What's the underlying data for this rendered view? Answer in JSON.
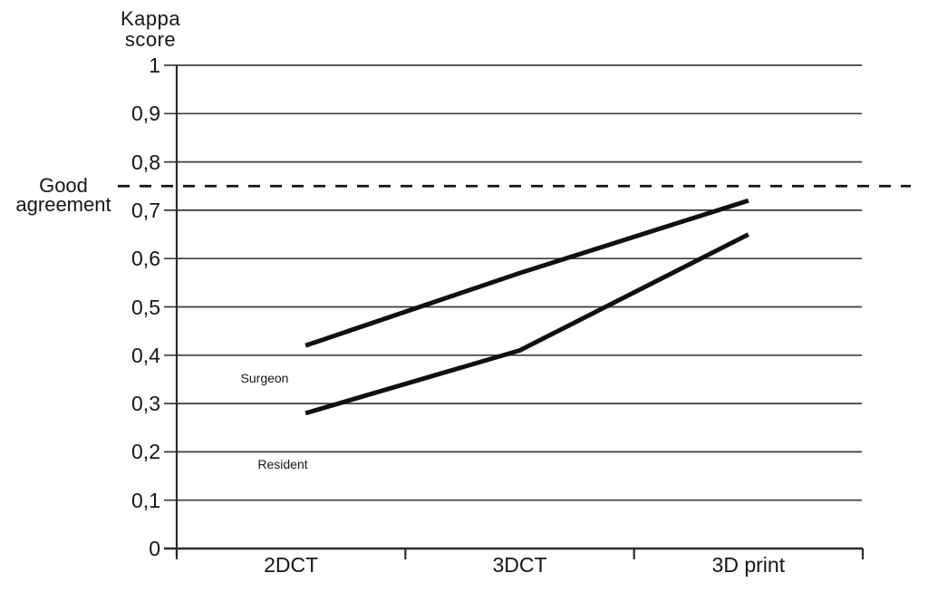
{
  "figure": {
    "background": "#ffffff",
    "text_color": "#161616",
    "axis_color": "#2b2b2b",
    "grid_color": "#3c3c3c",
    "series_color": "#101010"
  },
  "chart_data": {
    "type": "line",
    "title": "Kappa score",
    "title_lines": [
      "Kappa",
      "score"
    ],
    "ylabel": "Kappa score",
    "xlabel": "",
    "categories": [
      "2DCT",
      "3DCT",
      "3D print"
    ],
    "series": [
      {
        "name": "Surgeon",
        "values": [
          0.42,
          0.57,
          0.72
        ]
      },
      {
        "name": "Resident",
        "values": [
          0.28,
          0.41,
          0.65
        ]
      }
    ],
    "ylim": [
      0,
      1
    ],
    "y_ticks": [
      0,
      0.1,
      0.2,
      0.3,
      0.4,
      0.5,
      0.6,
      0.7,
      0.8,
      0.9,
      1
    ],
    "y_tick_labels": [
      "0",
      "0,1",
      "0,2",
      "0,3",
      "0,4",
      "0,5",
      "0,6",
      "0,7",
      "0,8",
      "0,9",
      "1"
    ],
    "threshold": {
      "value": 0.75,
      "label": "Good agreement",
      "label_lines": [
        "Good",
        "agreement"
      ],
      "style": "dashed"
    },
    "grid": "horizontal",
    "legend": "inline-labels"
  }
}
